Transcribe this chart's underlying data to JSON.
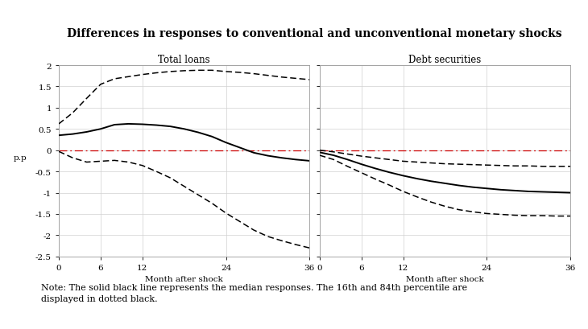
{
  "title": "Differences in responses to conventional and unconventional monetary shocks",
  "panel1_title": "Total loans",
  "panel2_title": "Debt securities",
  "xlabel": "Month after shock",
  "ylabel": "p.p",
  "ylim": [
    -2.5,
    2.0
  ],
  "yticks": [
    -2.5,
    -2.0,
    -1.5,
    -1.0,
    -0.5,
    0.0,
    0.5,
    1.0,
    1.5,
    2.0
  ],
  "xticks": [
    0,
    6,
    12,
    24,
    36
  ],
  "xlim": [
    0,
    36
  ],
  "note": "Note: The solid black line represents the median responses. The 16th and 84th percentile are\ndisplayed in dotted black.",
  "panel1_median": [
    0.35,
    0.38,
    0.43,
    0.5,
    0.6,
    0.62,
    0.61,
    0.59,
    0.56,
    0.5,
    0.42,
    0.32,
    0.18,
    0.06,
    -0.06,
    -0.13,
    -0.18,
    -0.22,
    -0.25
  ],
  "panel1_upper": [
    0.62,
    0.88,
    1.22,
    1.55,
    1.68,
    1.73,
    1.78,
    1.82,
    1.85,
    1.87,
    1.88,
    1.88,
    1.85,
    1.83,
    1.8,
    1.76,
    1.72,
    1.69,
    1.66
  ],
  "panel1_lower": [
    -0.03,
    -0.18,
    -0.28,
    -0.26,
    -0.24,
    -0.28,
    -0.36,
    -0.5,
    -0.65,
    -0.85,
    -1.05,
    -1.25,
    -1.48,
    -1.68,
    -1.88,
    -2.03,
    -2.13,
    -2.22,
    -2.3
  ],
  "panel2_median": [
    -0.05,
    -0.12,
    -0.22,
    -0.33,
    -0.43,
    -0.52,
    -0.6,
    -0.67,
    -0.73,
    -0.78,
    -0.83,
    -0.87,
    -0.9,
    -0.93,
    -0.95,
    -0.97,
    -0.98,
    -0.99,
    -1.0
  ],
  "panel2_upper": [
    0.0,
    -0.04,
    -0.09,
    -0.14,
    -0.18,
    -0.22,
    -0.26,
    -0.28,
    -0.3,
    -0.32,
    -0.33,
    -0.34,
    -0.35,
    -0.36,
    -0.37,
    -0.37,
    -0.38,
    -0.38,
    -0.38
  ],
  "panel2_lower": [
    -0.12,
    -0.22,
    -0.38,
    -0.53,
    -0.68,
    -0.82,
    -0.97,
    -1.1,
    -1.22,
    -1.32,
    -1.4,
    -1.45,
    -1.49,
    -1.51,
    -1.53,
    -1.54,
    -1.54,
    -1.55,
    -1.55
  ],
  "line_color": "#000000",
  "dashed_color": "#000000",
  "zero_line_color": "#cc0000",
  "background_color": "#ffffff",
  "grid_color": "#d0d0d0",
  "title_fontsize": 10,
  "panel_title_fontsize": 8.5,
  "axis_label_fontsize": 7.5,
  "tick_fontsize": 7.5,
  "note_fontsize": 8
}
